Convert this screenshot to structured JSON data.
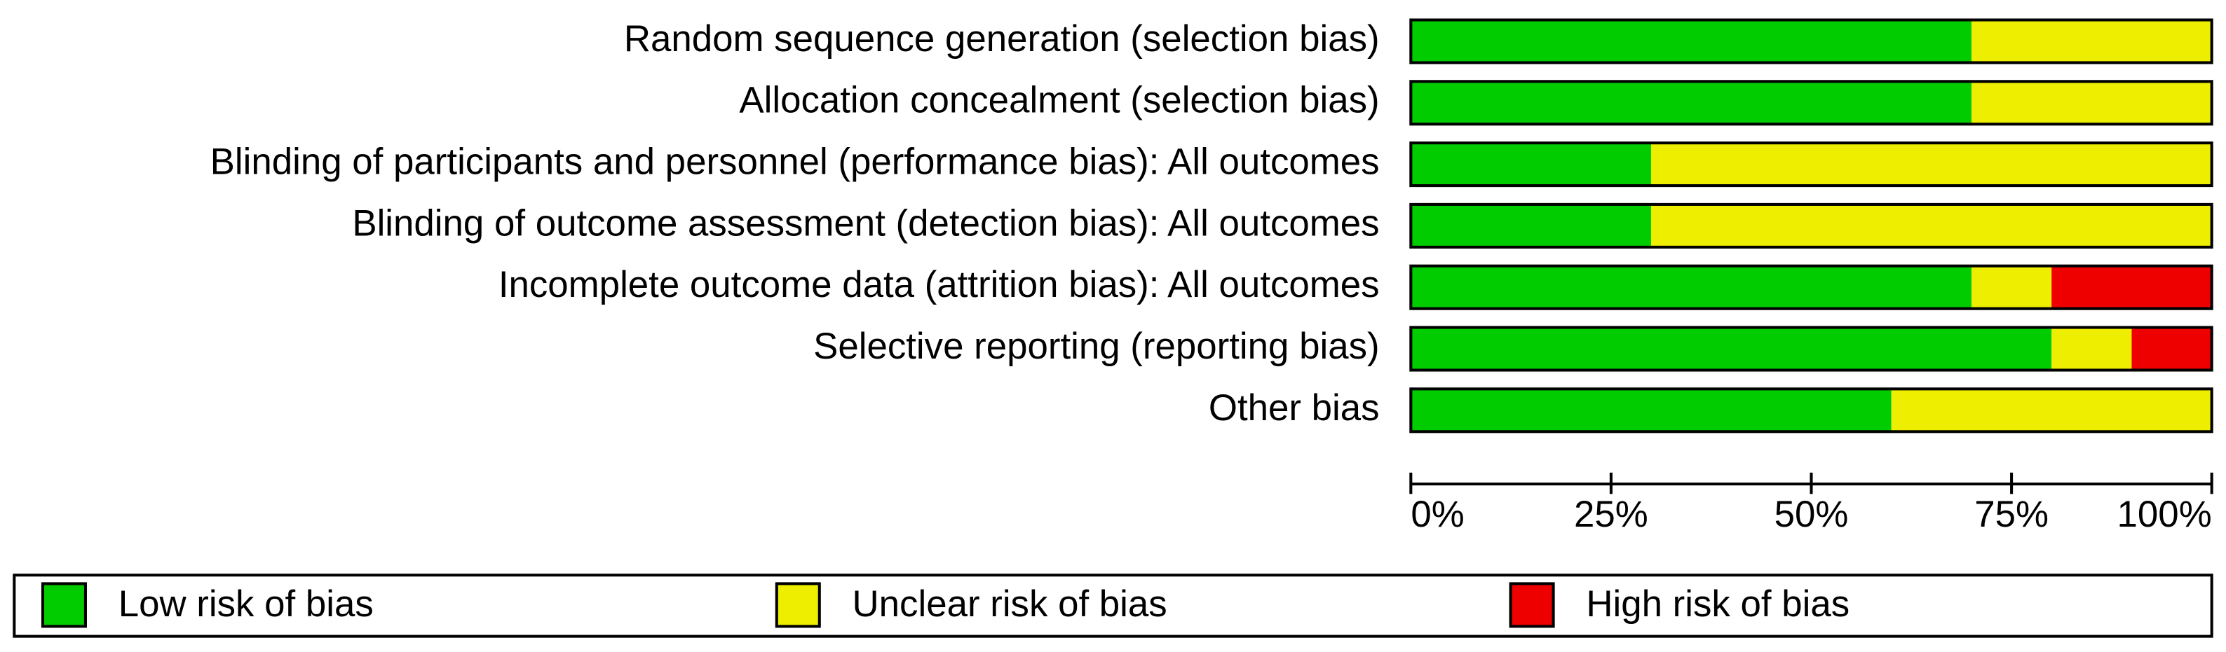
{
  "chart_data": {
    "type": "stacked-barh",
    "categories": [
      "Random sequence generation (selection bias)",
      "Allocation concealment (selection bias)",
      "Blinding of participants and personnel (performance bias): All outcomes",
      "Blinding of outcome assessment (detection bias): All outcomes",
      "Incomplete outcome data (attrition bias): All outcomes",
      "Selective reporting (reporting bias)",
      "Other bias"
    ],
    "series": [
      {
        "name": "Low risk of bias",
        "color": "#00cc00",
        "values": [
          70,
          70,
          30,
          30,
          70,
          80,
          60
        ]
      },
      {
        "name": "Unclear risk of bias",
        "color": "#eeee00",
        "values": [
          30,
          30,
          70,
          70,
          10,
          10,
          40
        ]
      },
      {
        "name": "High risk of bias",
        "color": "#ee0000",
        "values": [
          0,
          0,
          0,
          0,
          20,
          10,
          0
        ]
      }
    ],
    "xlim": [
      0,
      100
    ],
    "xticks": [
      {
        "value": 0,
        "label": "0%"
      },
      {
        "value": 25,
        "label": "25%"
      },
      {
        "value": 50,
        "label": "50%"
      },
      {
        "value": 75,
        "label": "75%"
      },
      {
        "value": 100,
        "label": "100%"
      }
    ],
    "legend": "bottom"
  }
}
